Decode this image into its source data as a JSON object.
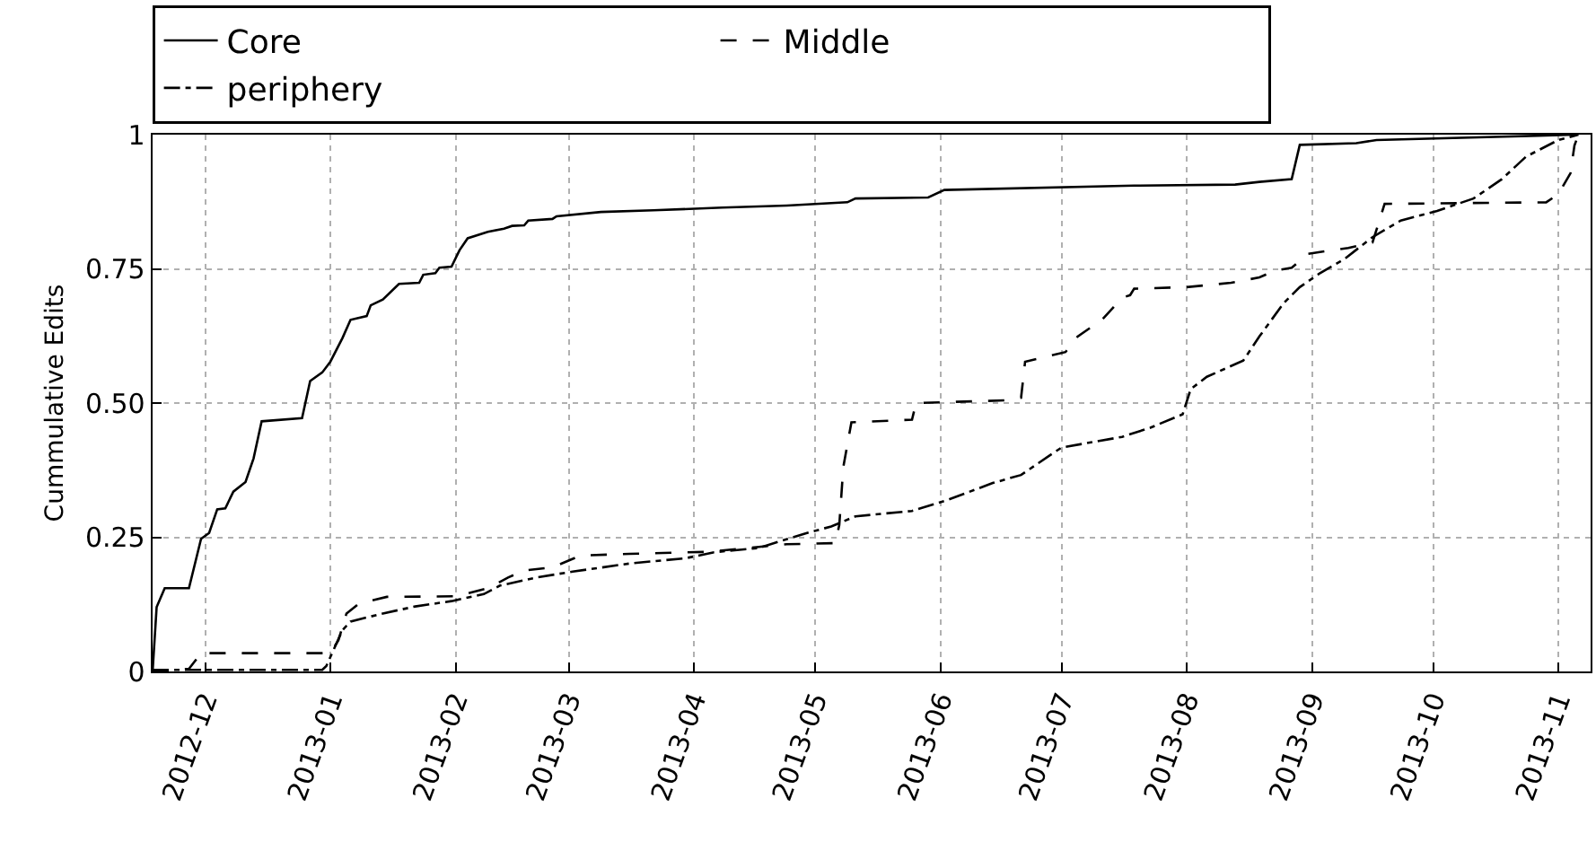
{
  "chart_data": {
    "type": "line",
    "ylabel": "Cummulative Edits",
    "xlim": [
      "2012-11-18",
      "2013-11-09"
    ],
    "xticks": [
      {
        "value": "2012-12",
        "label": "2012-12"
      },
      {
        "value": "2013-01",
        "label": "2013-01"
      },
      {
        "value": "2013-02",
        "label": "2013-02"
      },
      {
        "value": "2013-03",
        "label": "2013-03"
      },
      {
        "value": "2013-04",
        "label": "2013-04"
      },
      {
        "value": "2013-05",
        "label": "2013-05"
      },
      {
        "value": "2013-06",
        "label": "2013-06"
      },
      {
        "value": "2013-07",
        "label": "2013-07"
      },
      {
        "value": "2013-08",
        "label": "2013-08"
      },
      {
        "value": "2013-09",
        "label": "2013-09"
      },
      {
        "value": "2013-10",
        "label": "2013-10"
      },
      {
        "value": "2013-11",
        "label": "2013-11"
      }
    ],
    "ylim": [
      0,
      1
    ],
    "yticks": [
      0,
      {
        "value": 0.25,
        "label": "0.25"
      },
      {
        "value": 0.5,
        "label": "0.50"
      },
      {
        "value": 0.75,
        "label": "0.75"
      },
      1
    ],
    "grid": true,
    "legend": "top",
    "marker": "none",
    "series": [
      {
        "name": "Core",
        "color": "#000000",
        "line_style": "solid",
        "x": [
          "2012-11-18",
          "2012-11-19",
          "2012-11-21",
          "2012-11-27",
          "2012-11-30",
          "2012-12-02",
          "2012-12-04",
          "2012-12-06",
          "2012-12-08",
          "2012-12-11",
          "2012-12-13",
          "2012-12-15",
          "2012-12-25",
          "2012-12-27",
          "2012-12-30",
          "2013-01-01",
          "2013-01-04",
          "2013-01-06",
          "2013-01-10",
          "2013-01-11",
          "2013-01-14",
          "2013-01-18",
          "2013-01-23",
          "2013-01-24",
          "2013-01-27",
          "2013-01-28",
          "2013-01-31",
          "2013-02-02",
          "2013-02-04",
          "2013-02-09",
          "2013-02-13",
          "2013-02-15",
          "2013-02-18",
          "2013-02-19",
          "2013-02-25",
          "2013-02-26",
          "2013-03-09",
          "2013-03-22",
          "2013-04-08",
          "2013-04-24",
          "2013-05-09",
          "2013-05-11",
          "2013-05-29",
          "2013-06-02",
          "2013-07-19",
          "2013-08-13",
          "2013-08-19",
          "2013-08-27",
          "2013-08-29",
          "2013-09-12",
          "2013-09-17",
          "2013-10-27",
          "2013-11-05"
        ],
        "values": [
          0,
          0.12,
          0.155,
          0.155,
          0.247,
          0.258,
          0.302,
          0.304,
          0.335,
          0.353,
          0.397,
          0.466,
          0.472,
          0.541,
          0.557,
          0.577,
          0.621,
          0.655,
          0.662,
          0.682,
          0.693,
          0.722,
          0.724,
          0.739,
          0.742,
          0.752,
          0.754,
          0.785,
          0.807,
          0.819,
          0.825,
          0.83,
          0.831,
          0.84,
          0.843,
          0.848,
          0.856,
          0.859,
          0.864,
          0.868,
          0.874,
          0.881,
          0.883,
          0.897,
          0.905,
          0.907,
          0.912,
          0.917,
          0.981,
          0.984,
          0.99,
          0.998,
          1.0
        ]
      },
      {
        "name": "Middle",
        "color": "#000000",
        "line_style": "dashed",
        "x": [
          "2012-11-18",
          "2012-11-27",
          "2012-11-30",
          "2013-01-01",
          "2013-01-03",
          "2013-01-05",
          "2013-01-08",
          "2013-01-15",
          "2013-02-01",
          "2013-02-09",
          "2013-02-14",
          "2013-02-18",
          "2013-02-25",
          "2013-03-04",
          "2013-03-16",
          "2013-04-05",
          "2013-04-24",
          "2013-05-06",
          "2013-05-07",
          "2013-05-08",
          "2013-05-10",
          "2013-05-25",
          "2013-05-26",
          "2013-06-17",
          "2013-06-21",
          "2013-06-22",
          "2013-07-02",
          "2013-07-05",
          "2013-07-11",
          "2013-07-16",
          "2013-07-18",
          "2013-07-19",
          "2013-08-01",
          "2013-08-12",
          "2013-08-19",
          "2013-08-23",
          "2013-08-27",
          "2013-08-31",
          "2013-09-10",
          "2013-09-16",
          "2013-09-19",
          "2013-10-29",
          "2013-11-01",
          "2013-11-04",
          "2013-11-05",
          "2013-11-06"
        ],
        "values": [
          0,
          0.005,
          0.034,
          0.034,
          0.058,
          0.108,
          0.126,
          0.139,
          0.14,
          0.155,
          0.175,
          0.188,
          0.194,
          0.216,
          0.219,
          0.223,
          0.237,
          0.239,
          0.273,
          0.381,
          0.464,
          0.469,
          0.5,
          0.505,
          0.51,
          0.577,
          0.595,
          0.624,
          0.655,
          0.696,
          0.701,
          0.713,
          0.716,
          0.724,
          0.734,
          0.747,
          0.752,
          0.778,
          0.789,
          0.799,
          0.871,
          0.874,
          0.889,
          0.928,
          0.98,
          1.0
        ]
      },
      {
        "name": "periphery",
        "color": "#000000",
        "line_style": "dashdot",
        "x": [
          "2012-11-18",
          "2012-12-30",
          "2012-12-31",
          "2013-01-04",
          "2013-01-06",
          "2013-01-14",
          "2013-01-22",
          "2013-01-31",
          "2013-02-08",
          "2013-02-12",
          "2013-02-21",
          "2013-03-02",
          "2013-03-16",
          "2013-03-30",
          "2013-04-06",
          "2013-04-17",
          "2013-04-29",
          "2013-05-05",
          "2013-05-11",
          "2013-05-25",
          "2013-06-03",
          "2013-06-14",
          "2013-06-21",
          "2013-06-28",
          "2013-07-01",
          "2013-07-16",
          "2013-07-23",
          "2013-07-31",
          "2013-08-02",
          "2013-08-06",
          "2013-08-15",
          "2013-08-19",
          "2013-08-25",
          "2013-08-29",
          "2013-09-03",
          "2013-09-09",
          "2013-09-16",
          "2013-09-23",
          "2013-10-02",
          "2013-10-11",
          "2013-10-18",
          "2013-10-24",
          "2013-11-01",
          "2013-11-06"
        ],
        "values": [
          0.003,
          0.003,
          0.01,
          0.077,
          0.093,
          0.108,
          0.121,
          0.131,
          0.144,
          0.16,
          0.175,
          0.186,
          0.201,
          0.211,
          0.222,
          0.23,
          0.258,
          0.27,
          0.289,
          0.299,
          0.32,
          0.351,
          0.366,
          0.402,
          0.417,
          0.437,
          0.454,
          0.479,
          0.526,
          0.549,
          0.579,
          0.624,
          0.686,
          0.716,
          0.742,
          0.768,
          0.809,
          0.84,
          0.858,
          0.881,
          0.917,
          0.959,
          0.99,
          1.0
        ]
      }
    ]
  }
}
